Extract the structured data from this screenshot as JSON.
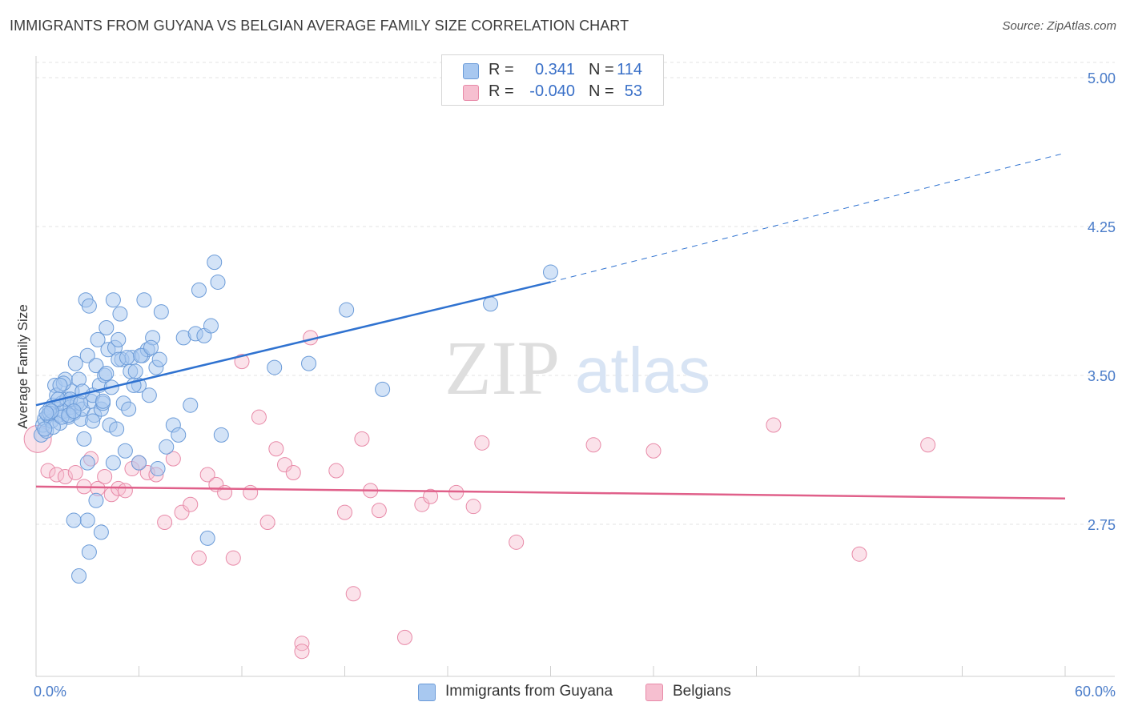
{
  "header": {
    "title": "IMMIGRANTS FROM GUYANA VS BELGIAN AVERAGE FAMILY SIZE CORRELATION CHART",
    "source": "Source: ZipAtlas.com"
  },
  "watermark": {
    "zip": "ZIP",
    "atlas": "atlas"
  },
  "legend": {
    "r_label": "R =",
    "n_label": "N =",
    "rows": [
      {
        "r": "0.341",
        "n": "114",
        "color": "#a8c8f0",
        "border": "#6b9bd8"
      },
      {
        "r": "-0.040",
        "n": "53",
        "color": "#f6bfd0",
        "border": "#e88aa8"
      }
    ]
  },
  "bottom_legend": [
    {
      "label": "Immigrants from Guyana",
      "color": "#a8c8f0",
      "border": "#6b9bd8"
    },
    {
      "label": "Belgians",
      "color": "#f6bfd0",
      "border": "#e88aa8"
    }
  ],
  "chart_data": {
    "type": "scatter",
    "title": "IMMIGRANTS FROM GUYANA VS BELGIAN AVERAGE FAMILY SIZE CORRELATION CHART",
    "xlabel": "",
    "ylabel": "Average Family Size",
    "xlim": [
      0,
      60
    ],
    "ylim": [
      2.0,
      5.15
    ],
    "x_tick_labels": [
      "0.0%",
      "60.0%"
    ],
    "y_ticks": [
      2.75,
      3.5,
      4.25,
      5.0
    ],
    "y_tick_labels": [
      "2.75",
      "3.50",
      "4.25",
      "5.00"
    ],
    "grid": true,
    "legend_position": "top-center",
    "series": [
      {
        "name": "Immigrants from Guyana",
        "color": "#6b9bd8",
        "fill": "#a8c8f0",
        "trend": {
          "x": [
            0,
            30
          ],
          "y": [
            3.35,
            3.97
          ],
          "extend_to_x": 60,
          "extend_to_y": 4.62,
          "color": "#2f72d0"
        },
        "points": [
          [
            0.3,
            3.2
          ],
          [
            0.4,
            3.25
          ],
          [
            0.5,
            3.28
          ],
          [
            0.6,
            3.22
          ],
          [
            0.7,
            3.3
          ],
          [
            0.8,
            3.33
          ],
          [
            0.9,
            3.27
          ],
          [
            1.0,
            3.35
          ],
          [
            1.1,
            3.45
          ],
          [
            1.2,
            3.4
          ],
          [
            1.3,
            3.3
          ],
          [
            1.4,
            3.26
          ],
          [
            1.5,
            3.36
          ],
          [
            1.6,
            3.32
          ],
          [
            1.7,
            3.48
          ],
          [
            1.8,
            3.38
          ],
          [
            1.9,
            3.29
          ],
          [
            2.0,
            3.34
          ],
          [
            2.1,
            3.42
          ],
          [
            2.2,
            3.31
          ],
          [
            2.3,
            3.56
          ],
          [
            2.4,
            3.36
          ],
          [
            2.5,
            3.48
          ],
          [
            2.6,
            3.28
          ],
          [
            2.7,
            3.33
          ],
          [
            2.8,
            3.18
          ],
          [
            2.9,
            3.88
          ],
          [
            3.0,
            3.6
          ],
          [
            3.1,
            3.85
          ],
          [
            3.2,
            3.37
          ],
          [
            3.3,
            3.4
          ],
          [
            3.4,
            3.3
          ],
          [
            3.5,
            3.55
          ],
          [
            3.6,
            3.68
          ],
          [
            3.7,
            3.45
          ],
          [
            3.8,
            3.33
          ],
          [
            3.9,
            3.36
          ],
          [
            4.0,
            3.5
          ],
          [
            4.1,
            3.74
          ],
          [
            4.2,
            3.63
          ],
          [
            4.3,
            3.25
          ],
          [
            4.4,
            3.44
          ],
          [
            4.5,
            3.88
          ],
          [
            4.6,
            3.64
          ],
          [
            4.7,
            3.23
          ],
          [
            4.8,
            3.68
          ],
          [
            4.9,
            3.81
          ],
          [
            5.0,
            3.58
          ],
          [
            5.1,
            3.36
          ],
          [
            5.2,
            3.12
          ],
          [
            5.4,
            3.33
          ],
          [
            5.5,
            3.52
          ],
          [
            5.6,
            3.59
          ],
          [
            5.8,
            3.52
          ],
          [
            6.0,
            3.45
          ],
          [
            6.2,
            3.6
          ],
          [
            6.3,
            3.88
          ],
          [
            6.5,
            3.63
          ],
          [
            6.6,
            3.4
          ],
          [
            6.8,
            3.69
          ],
          [
            7.0,
            3.54
          ],
          [
            7.2,
            3.58
          ],
          [
            7.3,
            3.82
          ],
          [
            7.6,
            3.14
          ],
          [
            8.0,
            3.25
          ],
          [
            8.3,
            3.2
          ],
          [
            8.6,
            3.69
          ],
          [
            9.0,
            3.35
          ],
          [
            9.3,
            3.71
          ],
          [
            9.5,
            3.93
          ],
          [
            9.8,
            3.7
          ],
          [
            10.0,
            2.68
          ],
          [
            10.2,
            3.75
          ],
          [
            10.4,
            4.07
          ],
          [
            10.6,
            3.97
          ],
          [
            10.8,
            3.2
          ],
          [
            4.5,
            3.06
          ],
          [
            3.0,
            3.06
          ],
          [
            3.5,
            2.87
          ],
          [
            3.0,
            2.77
          ],
          [
            3.8,
            2.71
          ],
          [
            3.1,
            2.61
          ],
          [
            2.5,
            2.49
          ],
          [
            2.2,
            2.77
          ],
          [
            6.0,
            3.06
          ],
          [
            30.0,
            4.02
          ],
          [
            26.5,
            3.86
          ],
          [
            18.1,
            3.83
          ],
          [
            13.9,
            3.54
          ],
          [
            15.9,
            3.56
          ],
          [
            20.2,
            3.43
          ],
          [
            1.6,
            3.46
          ],
          [
            2.0,
            3.38
          ],
          [
            1.0,
            3.24
          ],
          [
            0.8,
            3.31
          ],
          [
            1.5,
            3.29
          ],
          [
            2.6,
            3.36
          ],
          [
            3.9,
            3.37
          ],
          [
            0.5,
            3.23
          ],
          [
            1.3,
            3.38
          ],
          [
            0.9,
            3.32
          ],
          [
            1.9,
            3.3
          ],
          [
            2.7,
            3.42
          ],
          [
            4.8,
            3.58
          ],
          [
            5.3,
            3.59
          ],
          [
            6.1,
            3.6
          ],
          [
            7.1,
            3.03
          ],
          [
            0.6,
            3.31
          ],
          [
            1.4,
            3.45
          ],
          [
            2.2,
            3.32
          ],
          [
            3.3,
            3.27
          ],
          [
            4.1,
            3.51
          ],
          [
            5.7,
            3.45
          ],
          [
            6.7,
            3.64
          ]
        ]
      },
      {
        "name": "Belgians",
        "color": "#e88aa8",
        "fill": "#f6bfd0",
        "trend": {
          "x": [
            0,
            60
          ],
          "y": [
            2.94,
            2.88
          ],
          "color": "#e0608a"
        },
        "points": [
          [
            0.1,
            3.18
          ],
          [
            0.7,
            3.02
          ],
          [
            1.2,
            3.0
          ],
          [
            1.7,
            2.99
          ],
          [
            2.3,
            3.01
          ],
          [
            2.8,
            2.94
          ],
          [
            3.2,
            3.08
          ],
          [
            3.6,
            2.93
          ],
          [
            4.0,
            2.99
          ],
          [
            4.4,
            2.9
          ],
          [
            4.8,
            2.93
          ],
          [
            5.2,
            2.92
          ],
          [
            5.6,
            3.03
          ],
          [
            6.0,
            3.06
          ],
          [
            6.5,
            3.01
          ],
          [
            7.0,
            3.0
          ],
          [
            7.5,
            2.76
          ],
          [
            8.0,
            3.08
          ],
          [
            8.5,
            2.81
          ],
          [
            9.0,
            2.85
          ],
          [
            9.5,
            2.58
          ],
          [
            10.0,
            3.0
          ],
          [
            10.5,
            2.95
          ],
          [
            11.0,
            2.91
          ],
          [
            11.5,
            2.58
          ],
          [
            12.0,
            3.57
          ],
          [
            12.5,
            2.91
          ],
          [
            13.0,
            3.29
          ],
          [
            13.5,
            2.76
          ],
          [
            14.0,
            3.13
          ],
          [
            14.5,
            3.05
          ],
          [
            15.0,
            3.01
          ],
          [
            15.5,
            2.15
          ],
          [
            15.5,
            2.11
          ],
          [
            16.0,
            3.69
          ],
          [
            17.5,
            3.02
          ],
          [
            18.0,
            2.81
          ],
          [
            18.5,
            2.4
          ],
          [
            19.0,
            3.18
          ],
          [
            19.5,
            2.92
          ],
          [
            20.0,
            2.82
          ],
          [
            21.5,
            2.18
          ],
          [
            22.5,
            2.85
          ],
          [
            23.0,
            2.89
          ],
          [
            24.5,
            2.91
          ],
          [
            25.5,
            2.84
          ],
          [
            26.0,
            3.16
          ],
          [
            28.0,
            2.66
          ],
          [
            32.5,
            3.15
          ],
          [
            36.0,
            3.12
          ],
          [
            43.0,
            3.25
          ],
          [
            48.0,
            2.6
          ],
          [
            52.0,
            3.15
          ]
        ]
      }
    ]
  }
}
